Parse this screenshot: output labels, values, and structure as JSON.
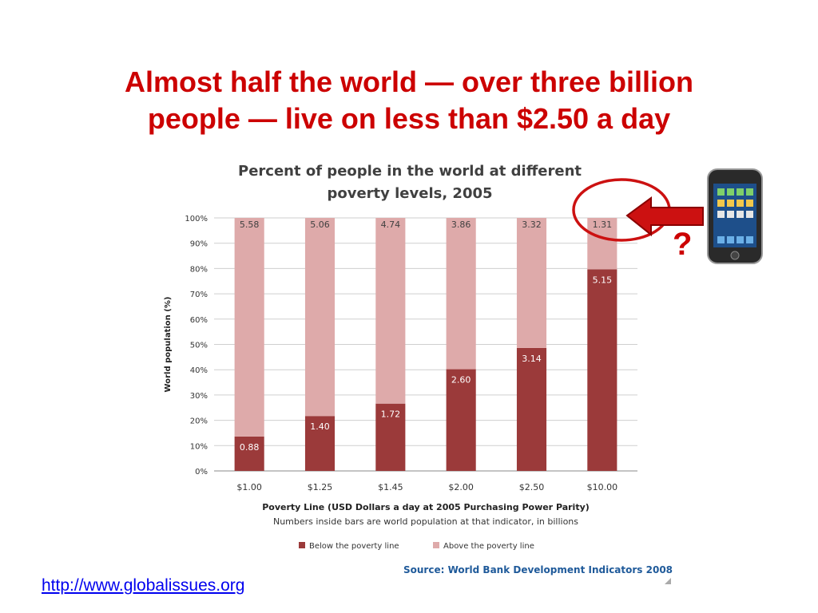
{
  "slide": {
    "title_line1": "Almost half the world — over three billion",
    "title_line2": "people — live on less than $2.50 a day",
    "link": "http://www.globalissues.org",
    "question_mark": "?",
    "title_color": "#cc0000"
  },
  "chart_data": {
    "type": "bar",
    "stacked": true,
    "title": "Percent of people in the world at different poverty levels, 2005",
    "title_lines": [
      "Percent of people in the world at different",
      "poverty levels, 2005"
    ],
    "xlabel": "Poverty Line (USD Dollars a day at 2005 Purchasing Power Parity)",
    "note": "Numbers inside bars are world population at that indicator, in billions",
    "ylabel": "World population (%)",
    "ylim": [
      0,
      100
    ],
    "y_ticks": [
      "0%",
      "10%",
      "20%",
      "30%",
      "40%",
      "50%",
      "60%",
      "70%",
      "80%",
      "90%",
      "100%"
    ],
    "categories": [
      "$1.00",
      "$1.25",
      "$1.45",
      "$2.00",
      "$2.50",
      "$10.00"
    ],
    "series": [
      {
        "name": "Below the poverty line",
        "color": "#9b3a3a",
        "values": [
          13.6,
          21.7,
          26.6,
          40.2,
          48.6,
          79.7
        ],
        "labels": [
          "0.88",
          "1.40",
          "1.72",
          "2.60",
          "3.14",
          "5.15"
        ]
      },
      {
        "name": "Above the poverty line",
        "color": "#deaaaa",
        "values": [
          86.4,
          78.3,
          73.4,
          59.8,
          51.4,
          20.3
        ],
        "labels": [
          "5.58",
          "5.06",
          "4.74",
          "3.86",
          "3.32",
          "1.31"
        ]
      }
    ],
    "grid": true,
    "legend_position": "bottom",
    "source": "Source: World Bank Development Indicators 2008"
  }
}
